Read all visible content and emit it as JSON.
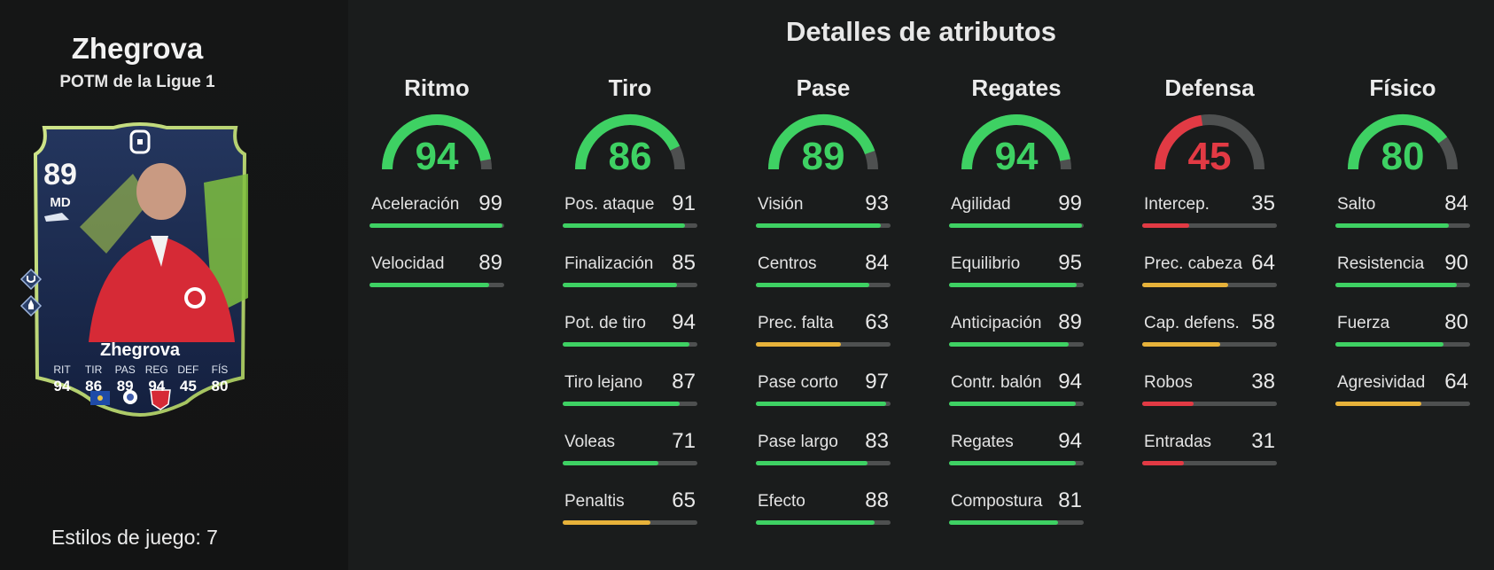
{
  "player": {
    "name": "Zhegrova",
    "subtitle": "POTM de la Ligue 1",
    "playstyles_label": "Estilos de juego: 7"
  },
  "card": {
    "rating": "89",
    "position": "MD",
    "name": "Zhegrova",
    "stats": [
      {
        "label": "RIT",
        "value": "94"
      },
      {
        "label": "TIR",
        "value": "86"
      },
      {
        "label": "PAS",
        "value": "89"
      },
      {
        "label": "REG",
        "value": "94"
      },
      {
        "label": "DEF",
        "value": "45"
      },
      {
        "label": "FÍS",
        "value": "80"
      }
    ]
  },
  "main_title": "Detalles de atributos",
  "colors": {
    "high": "#3ed163",
    "mid": "#e7b23a",
    "low": "#e23a44",
    "track": "#4e5050"
  },
  "categories": [
    {
      "title": "Ritmo",
      "value": 94,
      "attributes": [
        {
          "name": "Aceleración",
          "value": 99
        },
        {
          "name": "Velocidad",
          "value": 89
        }
      ]
    },
    {
      "title": "Tiro",
      "value": 86,
      "attributes": [
        {
          "name": "Pos. ataque",
          "value": 91
        },
        {
          "name": "Finalización",
          "value": 85
        },
        {
          "name": "Pot. de tiro",
          "value": 94
        },
        {
          "name": "Tiro lejano",
          "value": 87
        },
        {
          "name": "Voleas",
          "value": 71
        },
        {
          "name": "Penaltis",
          "value": 65
        }
      ]
    },
    {
      "title": "Pase",
      "value": 89,
      "attributes": [
        {
          "name": "Visión",
          "value": 93
        },
        {
          "name": "Centros",
          "value": 84
        },
        {
          "name": "Prec. falta",
          "value": 63
        },
        {
          "name": "Pase corto",
          "value": 97
        },
        {
          "name": "Pase largo",
          "value": 83
        },
        {
          "name": "Efecto",
          "value": 88
        }
      ]
    },
    {
      "title": "Regates",
      "value": 94,
      "attributes": [
        {
          "name": "Agilidad",
          "value": 99
        },
        {
          "name": "Equilibrio",
          "value": 95
        },
        {
          "name": "Anticipación",
          "value": 89
        },
        {
          "name": "Contr. balón",
          "value": 94
        },
        {
          "name": "Regates",
          "value": 94
        },
        {
          "name": "Compostura",
          "value": 81
        }
      ]
    },
    {
      "title": "Defensa",
      "value": 45,
      "attributes": [
        {
          "name": "Intercep.",
          "value": 35
        },
        {
          "name": "Prec. cabeza",
          "value": 64
        },
        {
          "name": "Cap. defens.",
          "value": 58
        },
        {
          "name": "Robos",
          "value": 38
        },
        {
          "name": "Entradas",
          "value": 31
        }
      ]
    },
    {
      "title": "Físico",
      "value": 80,
      "attributes": [
        {
          "name": "Salto",
          "value": 84
        },
        {
          "name": "Resistencia",
          "value": 90
        },
        {
          "name": "Fuerza",
          "value": 80
        },
        {
          "name": "Agresividad",
          "value": 64
        }
      ]
    }
  ]
}
